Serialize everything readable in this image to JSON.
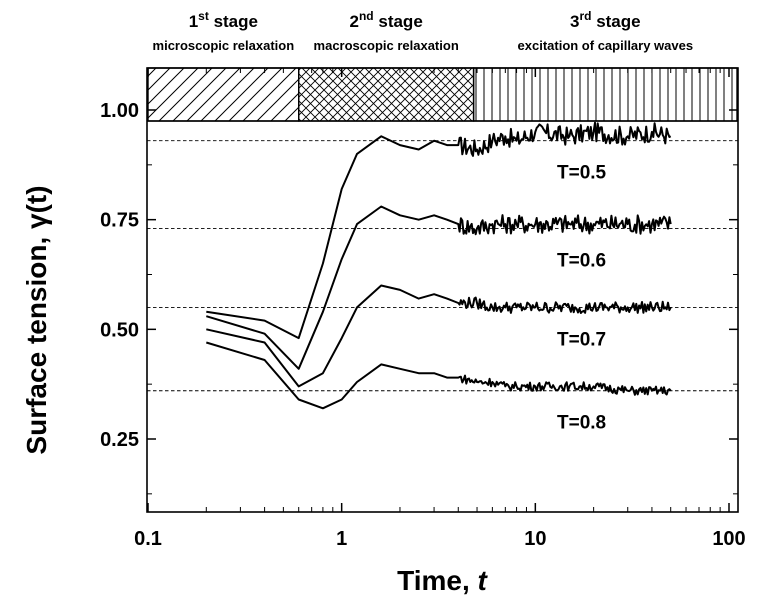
{
  "chart_data": {
    "type": "line",
    "xlabel": "Time, t",
    "ylabel": "Surface tension, γ(t)",
    "xscale": "log",
    "xlim": [
      0.1,
      110
    ],
    "ylim": [
      0.08,
      1.1
    ],
    "x_ticks": [
      "0.1",
      "1",
      "10",
      "100"
    ],
    "y_ticks": [
      "0.25",
      "0.50",
      "0.75",
      "1.00"
    ],
    "grid": false,
    "stages": [
      {
        "sup_base": "1",
        "sup": "st",
        "title": "stage",
        "subtitle": "microscopic relaxation",
        "x_range": [
          0.1,
          0.6
        ],
        "pattern": "diagonal"
      },
      {
        "sup_base": "2",
        "sup": "nd",
        "title": "stage",
        "subtitle": "macroscopic relaxation",
        "x_range": [
          0.6,
          4.8
        ],
        "pattern": "crosshatch"
      },
      {
        "sup_base": "3",
        "sup": "rd",
        "title": "stage",
        "subtitle": "excitation of capillary waves",
        "x_range": [
          4.8,
          110
        ],
        "pattern": "vertical"
      }
    ],
    "series": [
      {
        "name": "T=0.5",
        "equilibrium": 0.93,
        "x": [
          0.2,
          0.4,
          0.6,
          0.8,
          1.0,
          1.2,
          1.6,
          2.0,
          2.5,
          3.0,
          3.5,
          4.0,
          5.0,
          6.0,
          7.0,
          8.0,
          10,
          15,
          20,
          30,
          40,
          50
        ],
        "y": [
          0.54,
          0.52,
          0.48,
          0.65,
          0.82,
          0.9,
          0.94,
          0.92,
          0.91,
          0.93,
          0.92,
          0.92,
          0.91,
          0.93,
          0.94,
          0.93,
          0.95,
          0.94,
          0.95,
          0.94,
          0.95,
          0.94
        ]
      },
      {
        "name": "T=0.6",
        "equilibrium": 0.73,
        "x": [
          0.2,
          0.4,
          0.6,
          0.8,
          1.0,
          1.2,
          1.6,
          2.0,
          2.5,
          3.0,
          3.5,
          4.0,
          5.0,
          6.0,
          7.0,
          8.0,
          10,
          15,
          20,
          30,
          40,
          50
        ],
        "y": [
          0.53,
          0.49,
          0.41,
          0.54,
          0.66,
          0.74,
          0.78,
          0.76,
          0.75,
          0.76,
          0.75,
          0.74,
          0.73,
          0.74,
          0.74,
          0.74,
          0.74,
          0.74,
          0.74,
          0.74,
          0.74,
          0.74
        ]
      },
      {
        "name": "T=0.7",
        "equilibrium": 0.55,
        "x": [
          0.2,
          0.4,
          0.6,
          0.8,
          1.0,
          1.2,
          1.6,
          2.0,
          2.5,
          3.0,
          3.5,
          4.0,
          5.0,
          6.0,
          7.0,
          8.0,
          10,
          15,
          20,
          30,
          40,
          50
        ],
        "y": [
          0.5,
          0.47,
          0.37,
          0.4,
          0.48,
          0.55,
          0.6,
          0.59,
          0.57,
          0.58,
          0.57,
          0.56,
          0.56,
          0.55,
          0.55,
          0.55,
          0.55,
          0.55,
          0.55,
          0.55,
          0.55,
          0.55
        ]
      },
      {
        "name": "T=0.8",
        "equilibrium": 0.36,
        "x": [
          0.2,
          0.4,
          0.6,
          0.8,
          1.0,
          1.2,
          1.6,
          2.0,
          2.5,
          3.0,
          3.5,
          4.0,
          5.0,
          6.0,
          7.0,
          8.0,
          10,
          15,
          20,
          30,
          40,
          50
        ],
        "y": [
          0.47,
          0.43,
          0.34,
          0.32,
          0.34,
          0.38,
          0.42,
          0.41,
          0.4,
          0.4,
          0.39,
          0.39,
          0.38,
          0.38,
          0.37,
          0.37,
          0.37,
          0.37,
          0.37,
          0.36,
          0.36,
          0.36
        ]
      }
    ]
  }
}
